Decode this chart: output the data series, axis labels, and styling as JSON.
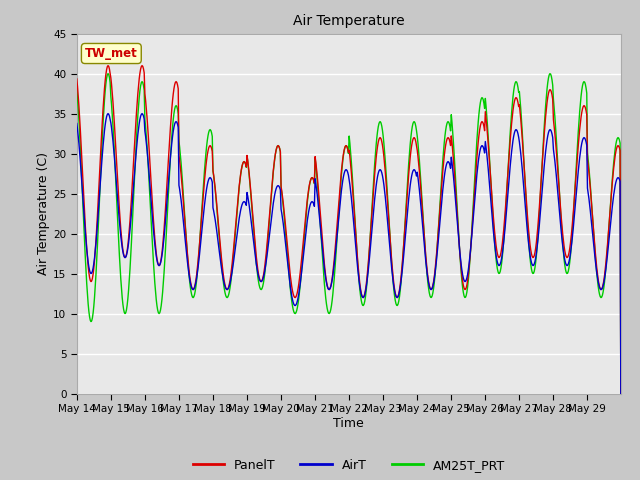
{
  "title": "Air Temperature",
  "xlabel": "Time",
  "ylabel": "Air Temperature (C)",
  "ylim": [
    0,
    45
  ],
  "yticks": [
    0,
    5,
    10,
    15,
    20,
    25,
    30,
    35,
    40,
    45
  ],
  "date_labels": [
    "May 14",
    "May 15",
    "May 16",
    "May 17",
    "May 18",
    "May 19",
    "May 20",
    "May 21",
    "May 22",
    "May 23",
    "May 24",
    "May 25",
    "May 26",
    "May 27",
    "May 28",
    "May 29"
  ],
  "annotation_text": "TW_met",
  "annotation_color": "#cc0000",
  "annotation_bg": "#ffffcc",
  "line_colors": {
    "PanelT": "#dd0000",
    "AirT": "#0000cc",
    "AM25T_PRT": "#00cc00"
  },
  "fig_bg": "#c8c8c8",
  "ax_bg": "#e8e8e8",
  "grid_color": "#ffffff",
  "n_days": 16,
  "day_amps_panel": [
    27,
    24,
    23,
    18,
    16,
    17,
    15,
    18,
    20,
    20,
    19,
    21,
    20,
    21,
    19,
    18
  ],
  "day_mins_panel": [
    14,
    17,
    16,
    13,
    13,
    14,
    12,
    13,
    12,
    12,
    13,
    13,
    17,
    17,
    17,
    13
  ],
  "day_amps_air": [
    20,
    18,
    18,
    14,
    11,
    12,
    13,
    15,
    16,
    16,
    16,
    17,
    17,
    17,
    16,
    14
  ],
  "day_mins_air": [
    15,
    17,
    16,
    13,
    13,
    14,
    11,
    13,
    12,
    12,
    13,
    14,
    16,
    16,
    16,
    13
  ],
  "day_amps_am25": [
    31,
    29,
    26,
    21,
    17,
    18,
    17,
    21,
    23,
    23,
    22,
    25,
    24,
    25,
    24,
    20
  ],
  "day_mins_am25": [
    9,
    10,
    10,
    12,
    12,
    13,
    10,
    10,
    11,
    11,
    12,
    12,
    15,
    15,
    15,
    12
  ]
}
